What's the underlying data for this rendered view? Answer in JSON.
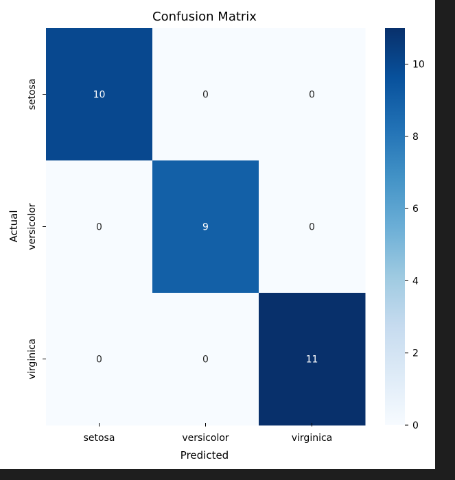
{
  "chart_data": {
    "type": "heatmap",
    "title": "Confusion Matrix",
    "xlabel": "Predicted",
    "ylabel": "Actual",
    "x_categories": [
      "setosa",
      "versicolor",
      "virginica"
    ],
    "y_categories": [
      "setosa",
      "versicolor",
      "virginica"
    ],
    "values": [
      [
        10,
        0,
        0
      ],
      [
        0,
        9,
        0
      ],
      [
        0,
        0,
        11
      ]
    ],
    "colormap": "Blues",
    "colorbar": {
      "range": [
        0,
        11
      ],
      "ticks": [
        0,
        2,
        4,
        6,
        8,
        10
      ],
      "tick_labels": [
        "0",
        "2",
        "4",
        "6",
        "8",
        "10"
      ]
    },
    "colors": {
      "low": "#f7fbff",
      "high": "#08306b",
      "annotation_dark_bg": "#ffffff",
      "annotation_light_bg": "#262626"
    }
  }
}
